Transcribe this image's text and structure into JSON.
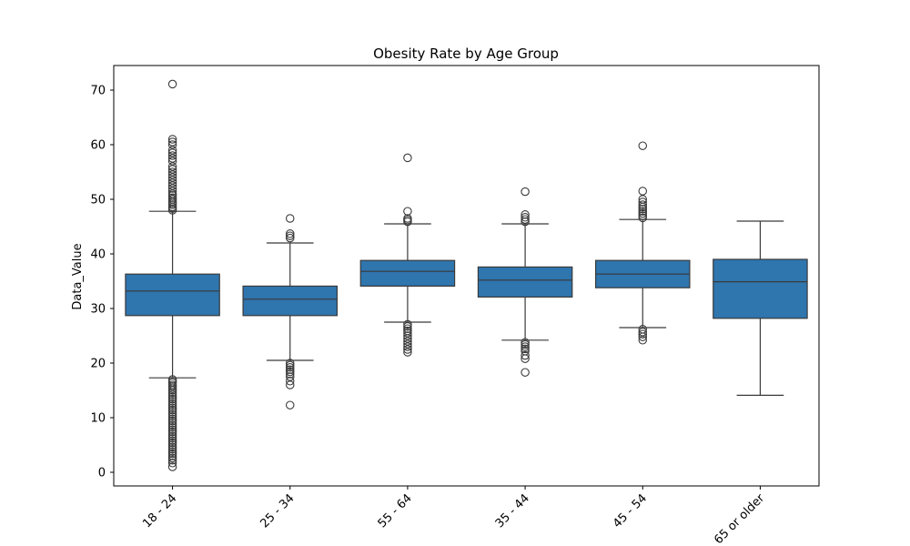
{
  "chart_data": {
    "type": "box",
    "title": "Obesity Rate by Age Group",
    "xlabel": "",
    "ylabel": "Data_Value",
    "ylim": [
      -2.5,
      74.5
    ],
    "yticks": [
      0,
      10,
      20,
      30,
      40,
      50,
      60,
      70
    ],
    "grid": false,
    "legend": "none",
    "box_color": "#2f75ae",
    "line_color": "#3a3a3a",
    "categories": [
      "18 - 24",
      "25 - 34",
      "55 - 64",
      "35 - 44",
      "45 - 54",
      "65 or older"
    ],
    "boxes": [
      {
        "category": "18 - 24",
        "whisker_low": 17.3,
        "q1": 28.7,
        "median": 33.2,
        "q3": 36.3,
        "whisker_high": 47.8,
        "outliers_high": [
          48.0,
          48.3,
          48.6,
          49.0,
          49.3,
          49.6,
          50.0,
          50.3,
          50.7,
          51.0,
          51.5,
          52.0,
          52.5,
          53.0,
          53.5,
          54.0,
          54.5,
          55.0,
          55.5,
          56.0,
          57.0,
          57.5,
          58.0,
          58.5,
          59.0,
          60.0,
          60.5,
          61.0,
          71.1
        ],
        "outliers_low": [
          17.0,
          16.7,
          16.4,
          16.0,
          15.7,
          15.3,
          15.0,
          14.6,
          14.2,
          13.8,
          13.4,
          13.0,
          12.6,
          12.2,
          11.8,
          11.4,
          11.0,
          10.6,
          10.2,
          9.8,
          9.4,
          9.0,
          8.6,
          8.2,
          7.8,
          7.4,
          7.0,
          6.6,
          6.2,
          5.8,
          5.4,
          5.0,
          4.6,
          4.2,
          3.8,
          3.4,
          3.0,
          2.6,
          2.2,
          1.7,
          1.0
        ]
      },
      {
        "category": "25 - 34",
        "whisker_low": 20.5,
        "q1": 28.7,
        "median": 31.7,
        "q3": 34.1,
        "whisker_high": 42.0,
        "outliers_high": [
          42.9,
          43.3,
          43.7,
          46.5
        ],
        "outliers_low": [
          20.0,
          19.6,
          19.2,
          18.8,
          18.4,
          18.0,
          17.5,
          16.7,
          16.0,
          12.3
        ]
      },
      {
        "category": "55 - 64",
        "whisker_low": 27.5,
        "q1": 34.1,
        "median": 36.8,
        "q3": 38.8,
        "whisker_high": 45.5,
        "outliers_high": [
          45.9,
          46.2,
          46.5,
          47.8,
          57.6
        ],
        "outliers_low": [
          27.1,
          26.7,
          26.3,
          25.9,
          25.5,
          25.0,
          24.5,
          24.0,
          23.5,
          23.0,
          22.5,
          22.0
        ]
      },
      {
        "category": "35 - 44",
        "whisker_low": 24.2,
        "q1": 32.1,
        "median": 35.2,
        "q3": 37.6,
        "whisker_high": 45.5,
        "outliers_high": [
          45.9,
          46.3,
          46.7,
          47.2,
          51.4
        ],
        "outliers_low": [
          23.8,
          23.4,
          23.0,
          22.6,
          22.2,
          21.4,
          20.8,
          18.3
        ]
      },
      {
        "category": "45 - 54",
        "whisker_low": 26.5,
        "q1": 33.8,
        "median": 36.3,
        "q3": 38.8,
        "whisker_high": 46.3,
        "outliers_high": [
          46.6,
          47.0,
          47.4,
          47.8,
          48.2,
          48.6,
          49.0,
          49.5,
          50.0,
          51.5,
          59.8
        ],
        "outliers_low": [
          26.2,
          25.7,
          25.3,
          24.8,
          24.2
        ]
      },
      {
        "category": "65 or older",
        "whisker_low": 14.1,
        "q1": 28.2,
        "median": 34.9,
        "q3": 39.0,
        "whisker_high": 46.0,
        "outliers_high": [],
        "outliers_low": []
      }
    ]
  }
}
